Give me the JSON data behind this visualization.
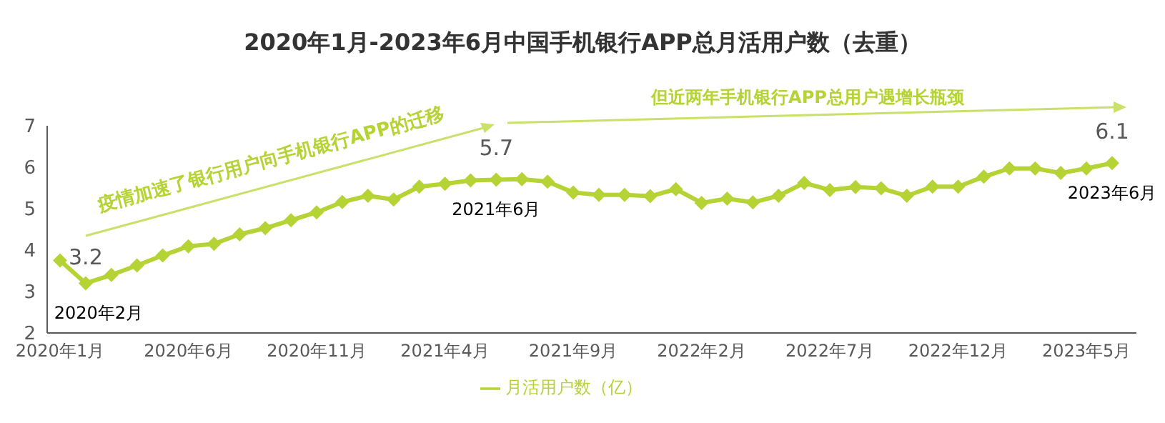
{
  "chart_data": {
    "type": "line",
    "title": "2020年1月-2023年6月中国手机银行APP总月活用户数（去重）",
    "categories": [
      "2020年1月",
      null,
      null,
      null,
      null,
      "2020年6月",
      null,
      null,
      null,
      null,
      "2020年11月",
      null,
      null,
      null,
      null,
      "2021年4月",
      null,
      null,
      null,
      null,
      "2021年9月",
      null,
      null,
      null,
      null,
      "2022年2月",
      null,
      null,
      null,
      null,
      "2022年7月",
      null,
      null,
      null,
      null,
      "2022年12月",
      null,
      null,
      null,
      null,
      "2023年5月",
      null
    ],
    "series": [
      {
        "name": "月活用户数（亿）",
        "color": "#b5d334",
        "values": [
          3.75,
          3.2,
          3.4,
          3.63,
          3.87,
          4.09,
          4.15,
          4.38,
          4.53,
          4.72,
          4.91,
          5.16,
          5.31,
          5.22,
          5.53,
          5.6,
          5.68,
          5.7,
          5.71,
          5.65,
          5.39,
          5.33,
          5.33,
          5.3,
          5.47,
          5.14,
          5.24,
          5.15,
          5.31,
          5.62,
          5.45,
          5.52,
          5.49,
          5.31,
          5.53,
          5.53,
          5.77,
          5.97,
          5.97,
          5.86,
          5.97,
          6.1
        ],
        "value_labels": [
          null,
          "3.2",
          null,
          null,
          null,
          null,
          null,
          null,
          null,
          null,
          null,
          null,
          null,
          null,
          null,
          null,
          null,
          "5.7",
          null,
          null,
          null,
          null,
          null,
          null,
          null,
          null,
          null,
          null,
          null,
          null,
          null,
          null,
          null,
          null,
          null,
          null,
          null,
          null,
          null,
          null,
          null,
          "6.1"
        ]
      }
    ],
    "ylim": [
      2,
      7
    ],
    "yticks": [
      2,
      3,
      4,
      5,
      6,
      7
    ],
    "grid": false,
    "legend": "bottom",
    "marker": "diamond",
    "line_style": "solid",
    "annotations": [
      "疫情加速了银行用户向手机银行APP的迁移",
      "但近两年手机银行APP总用户遇增长瓶颈",
      "2020年2月",
      "2021年6月",
      "2023年6月"
    ]
  }
}
